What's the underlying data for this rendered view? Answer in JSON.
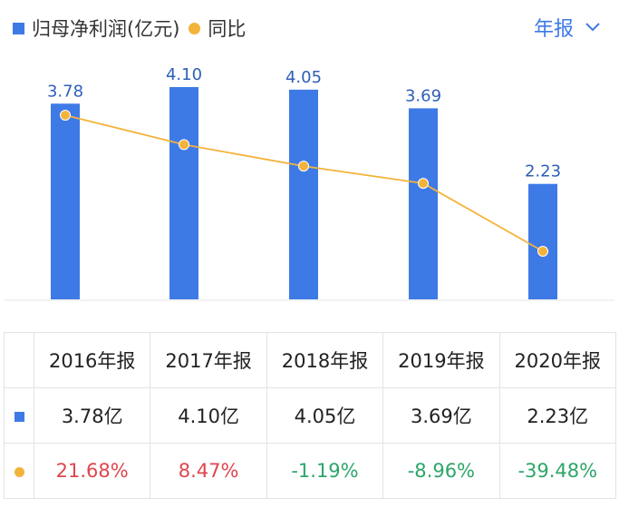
{
  "legend": {
    "bar_label": "归母净利润(亿元)",
    "line_label": "同比"
  },
  "period_selector": {
    "label": "年报",
    "icon": "chevron-down-icon"
  },
  "colors": {
    "bar": "#3e7ae6",
    "line": "#f3b33a",
    "positive": "#e0454e",
    "negative": "#2da56a",
    "period": "#3e7ae6"
  },
  "chart_data": {
    "type": "bar",
    "categories": [
      "2016年报",
      "2017年报",
      "2018年报",
      "2019年报",
      "2020年报"
    ],
    "series": [
      {
        "name": "归母净利润(亿元)",
        "type": "bar",
        "values": [
          3.78,
          4.1,
          4.05,
          3.69,
          2.23
        ],
        "labels": [
          "3.78",
          "4.10",
          "4.05",
          "3.69",
          "2.23"
        ]
      },
      {
        "name": "同比",
        "type": "line",
        "values": [
          21.68,
          8.47,
          -1.19,
          -8.96,
          -39.48
        ]
      }
    ],
    "ylim": [
      0,
      4.1
    ],
    "yoy_range": [
      -39.48,
      21.68
    ],
    "grid": false
  },
  "table": {
    "headers": [
      "2016年报",
      "2017年报",
      "2018年报",
      "2019年报",
      "2020年报"
    ],
    "profit_row": [
      "3.78亿",
      "4.10亿",
      "4.05亿",
      "3.69亿",
      "2.23亿"
    ],
    "yoy_row": [
      "21.68%",
      "8.47%",
      "-1.19%",
      "-8.96%",
      "-39.48%"
    ]
  }
}
